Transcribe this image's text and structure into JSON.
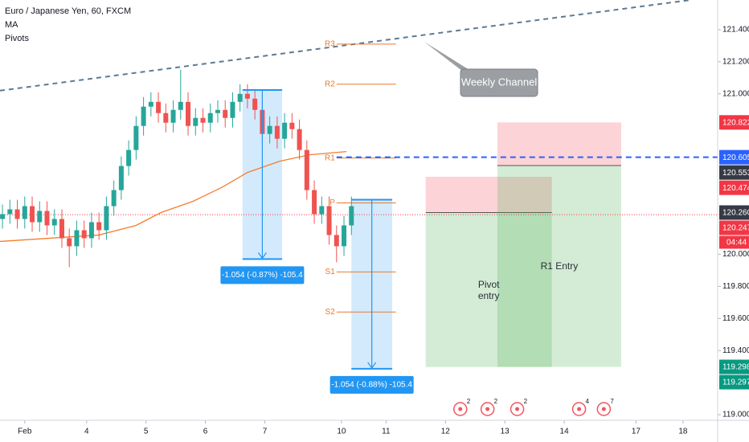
{
  "chart_data": {
    "type": "candlestick",
    "title": "Euro / Japanese Yen, 60, FXCM",
    "indicators": [
      "MA",
      "Pivots"
    ],
    "x": [
      1,
      4,
      7,
      10,
      13,
      16,
      19,
      22,
      25,
      28,
      31,
      34,
      37,
      40,
      43,
      46,
      49,
      52,
      55,
      58,
      61,
      64,
      67,
      70,
      73,
      76,
      79,
      82,
      85,
      88,
      91,
      94,
      97,
      100,
      103,
      106,
      109,
      112,
      115,
      118,
      121,
      124,
      127,
      130,
      133,
      136,
      139,
      142
    ],
    "open": [
      120.22,
      120.25,
      120.28,
      120.22,
      120.3,
      120.2,
      120.27,
      120.18,
      120.22,
      120.1,
      120.05,
      120.15,
      120.1,
      120.2,
      120.15,
      120.3,
      120.4,
      120.55,
      120.65,
      120.8,
      120.92,
      120.95,
      120.88,
      120.82,
      120.9,
      120.95,
      120.8,
      120.85,
      120.82,
      120.88,
      120.9,
      120.85,
      120.95,
      121.0,
      120.97,
      120.9,
      120.75,
      120.8,
      120.72,
      120.82,
      120.78,
      120.65,
      120.4,
      120.25,
      120.3,
      120.12,
      120.05,
      120.18
    ],
    "high": [
      120.31,
      120.34,
      120.34,
      120.36,
      120.36,
      120.33,
      120.33,
      120.28,
      120.28,
      120.16,
      120.21,
      120.21,
      120.26,
      120.26,
      120.36,
      120.46,
      120.61,
      120.71,
      120.86,
      120.98,
      121.01,
      121.01,
      120.94,
      120.96,
      121.15,
      121.01,
      120.91,
      120.91,
      120.94,
      120.96,
      120.96,
      121.01,
      121.06,
      121.06,
      121.03,
      120.96,
      120.86,
      120.86,
      120.88,
      120.88,
      120.84,
      120.71,
      120.46,
      120.36,
      120.36,
      120.18,
      120.24,
      120.36
    ],
    "low": [
      120.16,
      120.19,
      120.16,
      120.16,
      120.14,
      120.14,
      120.12,
      120.12,
      120.04,
      119.92,
      119.99,
      120.04,
      120.04,
      120.09,
      120.09,
      120.24,
      120.34,
      120.49,
      120.59,
      120.74,
      120.86,
      120.82,
      120.76,
      120.76,
      120.84,
      120.74,
      120.74,
      120.76,
      120.76,
      120.82,
      120.79,
      120.79,
      120.89,
      120.91,
      120.84,
      120.69,
      120.69,
      120.66,
      120.66,
      120.72,
      120.59,
      120.34,
      120.19,
      120.19,
      120.06,
      119.95,
      119.99,
      120.12
    ],
    "close": [
      120.25,
      120.28,
      120.22,
      120.3,
      120.2,
      120.27,
      120.18,
      120.22,
      120.1,
      120.05,
      120.15,
      120.1,
      120.2,
      120.15,
      120.3,
      120.4,
      120.55,
      120.65,
      120.8,
      120.92,
      120.95,
      120.88,
      120.82,
      120.9,
      120.95,
      120.8,
      120.85,
      120.82,
      120.88,
      120.9,
      120.85,
      120.95,
      121.0,
      120.97,
      120.9,
      120.75,
      120.8,
      120.72,
      120.82,
      120.78,
      120.65,
      120.4,
      120.25,
      120.3,
      120.12,
      120.05,
      120.18,
      120.3
    ],
    "up_color": "#26a69a",
    "down_color": "#ef5350",
    "xlim": [
      0,
      290
    ],
    "xticks": [
      {
        "value": 10,
        "label": "Feb"
      },
      {
        "value": 35,
        "label": "4"
      },
      {
        "value": 59,
        "label": "5"
      },
      {
        "value": 83,
        "label": "6"
      },
      {
        "value": 107,
        "label": "7"
      },
      {
        "value": 138,
        "label": "10"
      },
      {
        "value": 156,
        "label": "11"
      },
      {
        "value": 180,
        "label": "12"
      },
      {
        "value": 204,
        "label": "13"
      },
      {
        "value": 228,
        "label": "14"
      },
      {
        "value": 257,
        "label": "17"
      },
      {
        "value": 276,
        "label": "18"
      }
    ],
    "ylim": [
      118.965,
      121.585
    ],
    "yticks": [
      {
        "value": 121.4,
        "label": "121.400"
      },
      {
        "value": 121.2,
        "label": "121.200"
      },
      {
        "value": 121.0,
        "label": "121.000"
      },
      {
        "value": 120.0,
        "label": "120.000"
      },
      {
        "value": 119.8,
        "label": "119.800"
      },
      {
        "value": 119.6,
        "label": "119.600"
      },
      {
        "value": 119.4,
        "label": "119.400"
      },
      {
        "value": 119.0,
        "label": "119.000"
      }
    ],
    "ma": {
      "color": "#f57c2e",
      "x": [
        0,
        20,
        40,
        55,
        65,
        78,
        90,
        100,
        113,
        125,
        140
      ],
      "values": [
        120.08,
        120.1,
        120.12,
        120.18,
        120.26,
        120.33,
        120.42,
        120.51,
        120.58,
        120.62,
        120.64
      ]
    },
    "pivots": {
      "color": "#e8792b",
      "start": 136,
      "end": 160,
      "levels": [
        {
          "name": "R3",
          "value": 121.31
        },
        {
          "name": "R2",
          "value": 121.06
        },
        {
          "name": "R1",
          "value": 120.6
        },
        {
          "name": "P",
          "value": 120.32
        },
        {
          "name": "S1",
          "value": 119.89
        },
        {
          "name": "S2",
          "value": 119.64
        }
      ]
    },
    "channel": {
      "label": "Weekly Channel",
      "color": "#5d7a94",
      "x": [
        0,
        279
      ],
      "values": [
        121.02,
        121.585
      ]
    },
    "last_price": {
      "value": 120.247,
      "color": "#f23645"
    },
    "alert_line": {
      "value": 120.605,
      "start": 136,
      "color": "#2962ff"
    },
    "measures": [
      {
        "x": [
          98,
          114
        ],
        "from": 121.024,
        "to": 119.97,
        "label": "-1.054 (-0.87%) -105.4"
      },
      {
        "x": [
          142,
          158.5
        ],
        "from": 120.34,
        "to": 119.286,
        "label": "-1.054 (-0.88%) -105.4"
      }
    ],
    "positions": [
      {
        "label": "Pivot\nentry",
        "x": [
          172,
          223
        ],
        "entry": 120.26,
        "stop": 120.483,
        "target": 119.297
      },
      {
        "label": "R1 Entry",
        "x": [
          201,
          251
        ],
        "entry": 120.553,
        "stop": 120.822,
        "target": 119.298
      }
    ],
    "price_labels": [
      {
        "value": 120.822,
        "color": "#f23645"
      },
      {
        "value": 120.605,
        "color": "#2962ff"
      },
      {
        "value": 120.553,
        "color": "#363a45"
      },
      {
        "value": 120.474,
        "color": "#f23645"
      },
      {
        "value": 120.26,
        "label": "120.260",
        "color": "#363a45"
      },
      {
        "value": 120.247,
        "color": "#f23645"
      },
      {
        "value": 119.297,
        "color": "#089981"
      },
      {
        "value": 119.298,
        "color": "#089981"
      }
    ],
    "countdown": "04:44",
    "events": [
      {
        "x": 186,
        "count": 2
      },
      {
        "x": 197,
        "count": 2
      },
      {
        "x": 209,
        "count": 2
      },
      {
        "x": 234,
        "count": 4
      },
      {
        "x": 244,
        "count": 7
      }
    ]
  }
}
